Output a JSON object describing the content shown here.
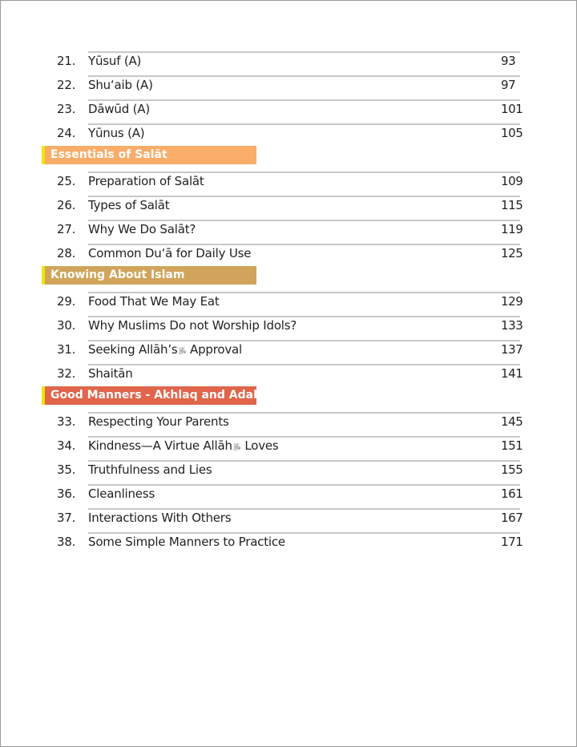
{
  "sections": [
    {
      "heading": null,
      "items": [
        {
          "num": "21.",
          "title": "Yūsuf (A)",
          "page": "93"
        },
        {
          "num": "22.",
          "title": "Shuʻaib (A)",
          "page": "97"
        },
        {
          "num": "23.",
          "title": "Dāwūd (A)",
          "page": "101"
        },
        {
          "num": "24.",
          "title": "Yūnus (A)",
          "page": "105"
        }
      ]
    },
    {
      "heading": "Essentials of Salāt",
      "color": "#f9ad68",
      "items": [
        {
          "num": "25.",
          "title": "Preparation of Salāt",
          "page": "109"
        },
        {
          "num": "26.",
          "title": "Types of Salāt",
          "page": "115"
        },
        {
          "num": "27.",
          "title": "Why We Do Salāt?",
          "page": "119"
        },
        {
          "num": "28.",
          "title": "Common Duʻā  for Daily Use",
          "page": "125"
        }
      ]
    },
    {
      "heading": "Knowing About Islam",
      "color": "#d0a55b",
      "items": [
        {
          "num": "29.",
          "title": "Food That We May Eat",
          "page": "129"
        },
        {
          "num": "30.",
          "title": "Why Muslims Do not Worship Idols?",
          "page": "133"
        },
        {
          "num": "31.",
          "title": "Seeking Allāh’s",
          "title_after": " Approval",
          "page": "137"
        },
        {
          "num": "32.",
          "title": "Shaitān",
          "page": "141"
        }
      ]
    },
    {
      "heading": "Good Manners - Akhlaq and Adab",
      "color": "#e0654b",
      "items": [
        {
          "num": "33.",
          "title": "Respecting Your Parents",
          "page": "145"
        },
        {
          "num": "34.",
          "title": "Kindness—A Virtue Allāh",
          "title_after": " Loves",
          "page": "151"
        },
        {
          "num": "35.",
          "title": "Truthfulness and Lies",
          "page": "155"
        },
        {
          "num": "36.",
          "title": "Cleanliness",
          "page": "161"
        },
        {
          "num": "37.",
          "title": "Interactions With Others",
          "page": "167"
        },
        {
          "num": "38.",
          "title": "Some Simple Manners to Practice",
          "page": "171"
        }
      ]
    }
  ],
  "honorific_icon": "swt-calligraphy-icon",
  "stripe_color": "#f3e500"
}
